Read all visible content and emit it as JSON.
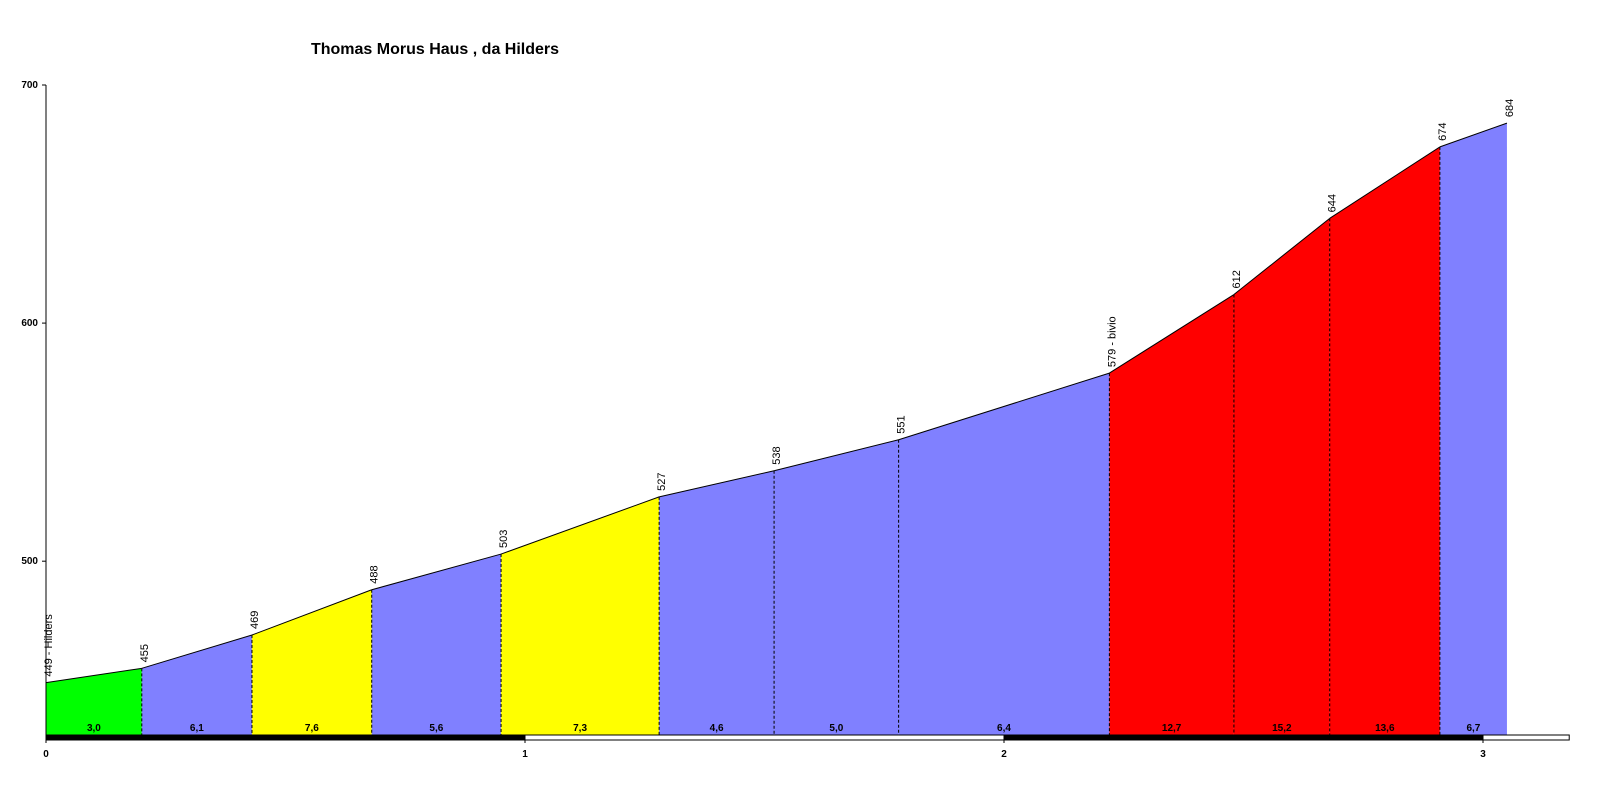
{
  "chart_data": {
    "type": "area",
    "title": "Thomas Morus Haus , da Hilders",
    "x": [
      0,
      0.2,
      0.43,
      0.68,
      0.95,
      1.28,
      1.52,
      1.78,
      2.22,
      2.48,
      2.68,
      2.91,
      3.05
    ],
    "values": [
      449,
      455,
      469,
      488,
      503,
      527,
      538,
      551,
      579,
      612,
      644,
      674,
      684
    ],
    "value_labels": [
      "449 - Hilders",
      "455",
      "469",
      "488",
      "503",
      "527",
      "538",
      "551",
      "579 - bivio",
      "612",
      "644",
      "674",
      "684"
    ],
    "gradients": {
      "values": [
        3.0,
        6.1,
        7.6,
        5.6,
        7.3,
        4.6,
        5.0,
        6.4,
        12.7,
        15.2,
        13.6,
        6.7
      ],
      "value_labels": [
        "3,0",
        "6,1",
        "7,6",
        "5,6",
        "7,3",
        "4,6",
        "5,0",
        "6,4",
        "12,7",
        "15,2",
        "13,6",
        "6,7"
      ],
      "colors": [
        "#00ff00",
        "#8080ff",
        "#ffff00",
        "#8080ff",
        "#ffff00",
        "#8080ff",
        "#8080ff",
        "#8080ff",
        "#ff0000",
        "#ff0000",
        "#ff0000",
        "#8080ff"
      ]
    },
    "xlim": [
      0,
      3.18
    ],
    "ylim": [
      427,
      700
    ],
    "xticks": [
      0,
      1,
      2,
      3
    ],
    "yticks": [
      500,
      600,
      700
    ]
  }
}
